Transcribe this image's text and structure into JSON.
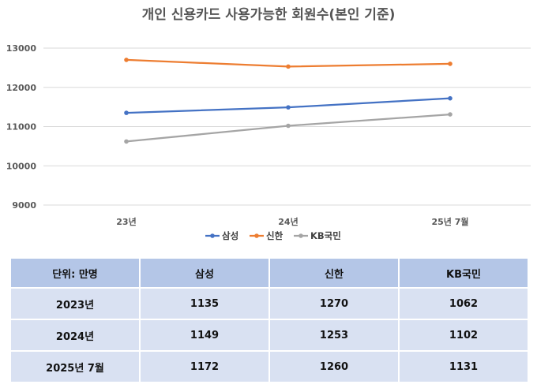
{
  "chart_data": {
    "type": "line",
    "title": "개인 신용카드 사용가능한 회원수(본인 기준)",
    "categories": [
      "23년",
      "24년",
      "25년 7월"
    ],
    "yticks": [
      "9000",
      "10000",
      "11000",
      "12000",
      "13000"
    ],
    "ylim": [
      9000,
      13000
    ],
    "grid": true,
    "legend_position": "bottom",
    "series": [
      {
        "name": "삼성",
        "values": [
          11350,
          11490,
          11720
        ],
        "color": "#4472c4"
      },
      {
        "name": "신한",
        "values": [
          12700,
          12530,
          12600
        ],
        "color": "#ed7d31"
      },
      {
        "name": "KB국민",
        "values": [
          10620,
          11020,
          11310
        ],
        "color": "#a5a5a5"
      }
    ]
  },
  "table": {
    "headers": [
      "단위: 만명",
      "삼성",
      "신한",
      "KB국민"
    ],
    "rows": [
      [
        "2023년",
        "1135",
        "1270",
        "1062"
      ],
      [
        "2024년",
        "1149",
        "1253",
        "1102"
      ],
      [
        "2025년 7월",
        "1172",
        "1260",
        "1131"
      ]
    ]
  }
}
